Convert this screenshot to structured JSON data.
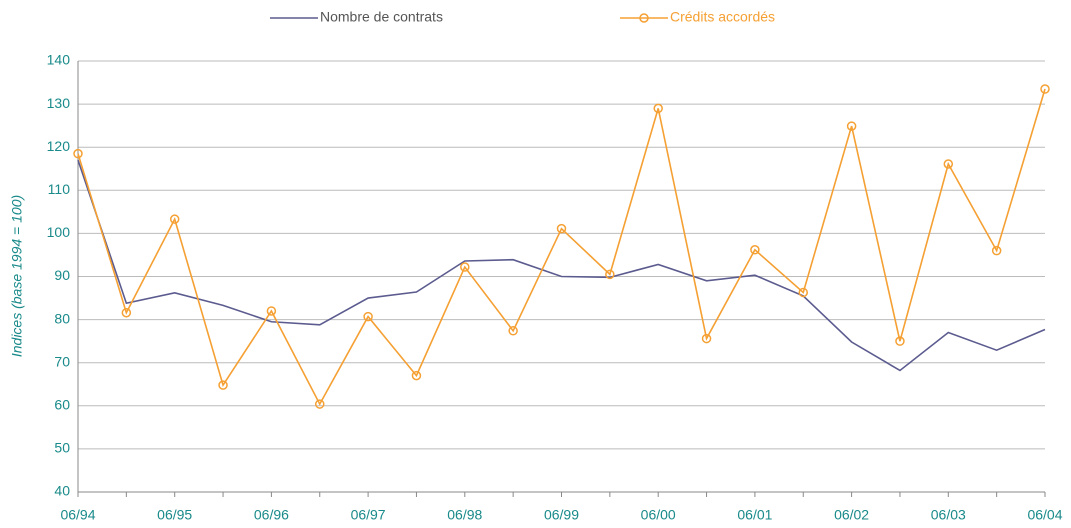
{
  "chart_data": {
    "type": "line",
    "y_label": "Indices (base 1994 = 100)",
    "categories": [
      "06/94",
      null,
      "06/95",
      null,
      "06/96",
      null,
      "06/97",
      null,
      "06/98",
      null,
      "06/99",
      null,
      "06/00",
      null,
      "06/01",
      null,
      "06/02",
      null,
      "06/03",
      null,
      "06/04"
    ],
    "series": [
      {
        "name": "Nombre de contrats",
        "color": "#5b5b8f",
        "marker": false,
        "values": [
          117,
          83.8,
          86.2,
          83.3,
          79.5,
          78.8,
          85,
          86.4,
          93.6,
          93.9,
          90,
          89.8,
          92.8,
          89,
          90.3,
          85.5,
          74.8,
          68.2,
          77,
          72.9,
          77.7
        ]
      },
      {
        "name": "Crédits accordés",
        "color": "#f5a033",
        "marker": true,
        "values": [
          118.5,
          81.6,
          103.3,
          64.8,
          82,
          60.4,
          80.7,
          67,
          92.2,
          77.4,
          101.1,
          90.5,
          129,
          75.6,
          96.2,
          86.3,
          124.9,
          75,
          116.1,
          96,
          133.5
        ]
      }
    ],
    "ylim": [
      40,
      140
    ],
    "yticks": [
      40,
      50,
      60,
      70,
      80,
      90,
      100,
      110,
      120,
      130,
      140
    ],
    "grid": true
  }
}
